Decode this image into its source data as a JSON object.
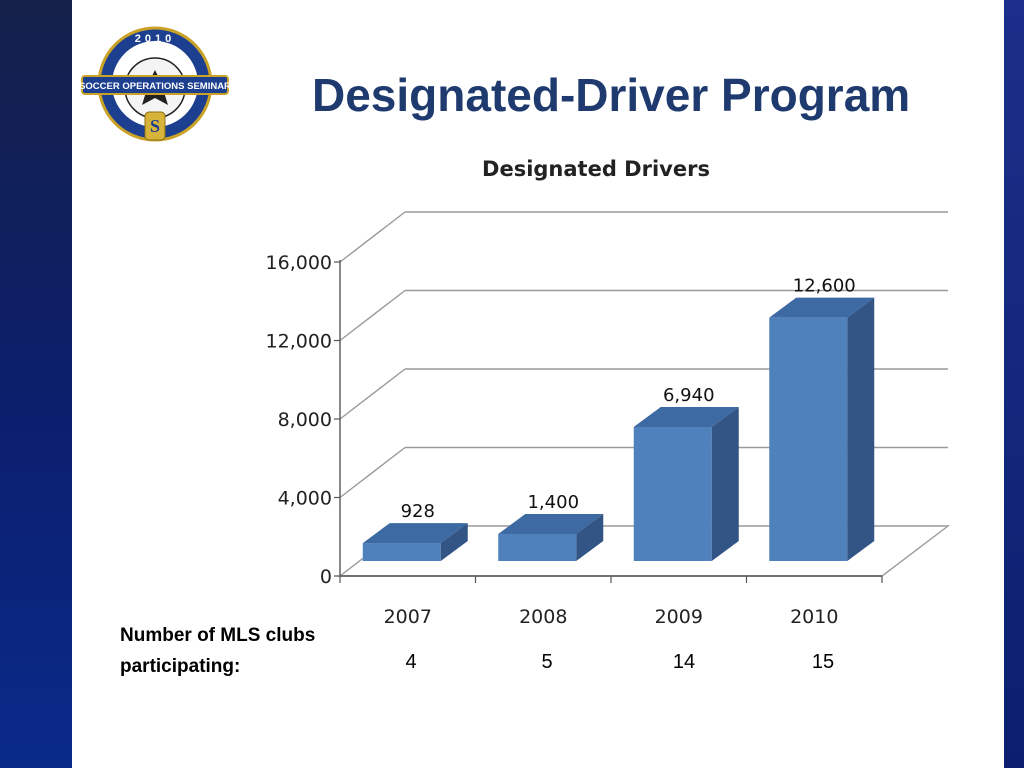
{
  "slide": {
    "title": "Designated-Driver Program",
    "logo": {
      "year": "2010",
      "banner": "SOCCER OPERATIONS SEMINAR"
    }
  },
  "colors": {
    "bar_front": "#4f81bd",
    "bar_top": "#3e6aa3",
    "bar_side": "#325586",
    "grid": "#9a9a9a",
    "title_blue": "#1f3a6e"
  },
  "chart_data": {
    "type": "bar",
    "title": "Designated Drivers",
    "categories": [
      "2007",
      "2008",
      "2009",
      "2010"
    ],
    "values": [
      928,
      1400,
      6940,
      12600
    ],
    "data_labels": [
      "928",
      "1,400",
      "6,940",
      "12,600"
    ],
    "ylim": [
      0,
      16000
    ],
    "yticks": [
      0,
      4000,
      8000,
      12000,
      16000
    ],
    "ytick_labels": [
      "0",
      "4,000",
      "8,000",
      "12,000",
      "16,000"
    ],
    "grid": true,
    "style": "3d-column"
  },
  "clubs": {
    "label_line1": "Number of MLS clubs",
    "label_line2": "participating:",
    "counts": [
      "4",
      "5",
      "14",
      "15"
    ]
  }
}
